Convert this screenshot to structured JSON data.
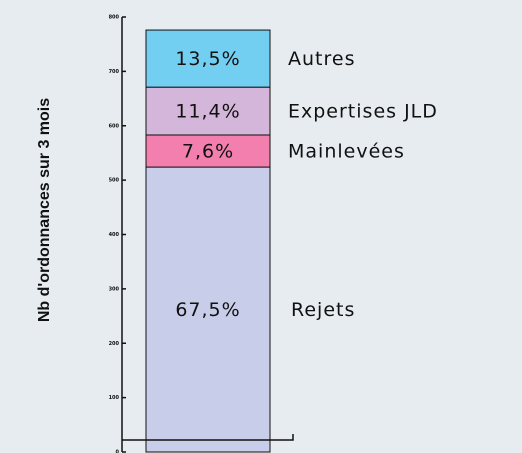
{
  "chart_data": {
    "type": "stacked_bar",
    "y_label": "Nb d'ordonnances sur 3 mois",
    "ylim": [
      0,
      800
    ],
    "yticks": [
      0,
      100,
      200,
      300,
      400,
      500,
      600,
      700,
      800
    ],
    "series": [
      {
        "name": "Rejets",
        "color": "#c8cde9",
        "values": [
          524
        ],
        "value_labels": [
          "67,5%"
        ]
      },
      {
        "name": "Mainlevées",
        "color": "#f27fae",
        "values": [
          59
        ],
        "value_labels": [
          "7,6%"
        ]
      },
      {
        "name": "Expertises JLD",
        "color": "#d3b6d9",
        "values": [
          88
        ],
        "value_labels": [
          "11,4%"
        ]
      },
      {
        "name": "Autres",
        "color": "#72cff2",
        "values": [
          105
        ],
        "value_labels": [
          "13,5%"
        ]
      }
    ]
  }
}
